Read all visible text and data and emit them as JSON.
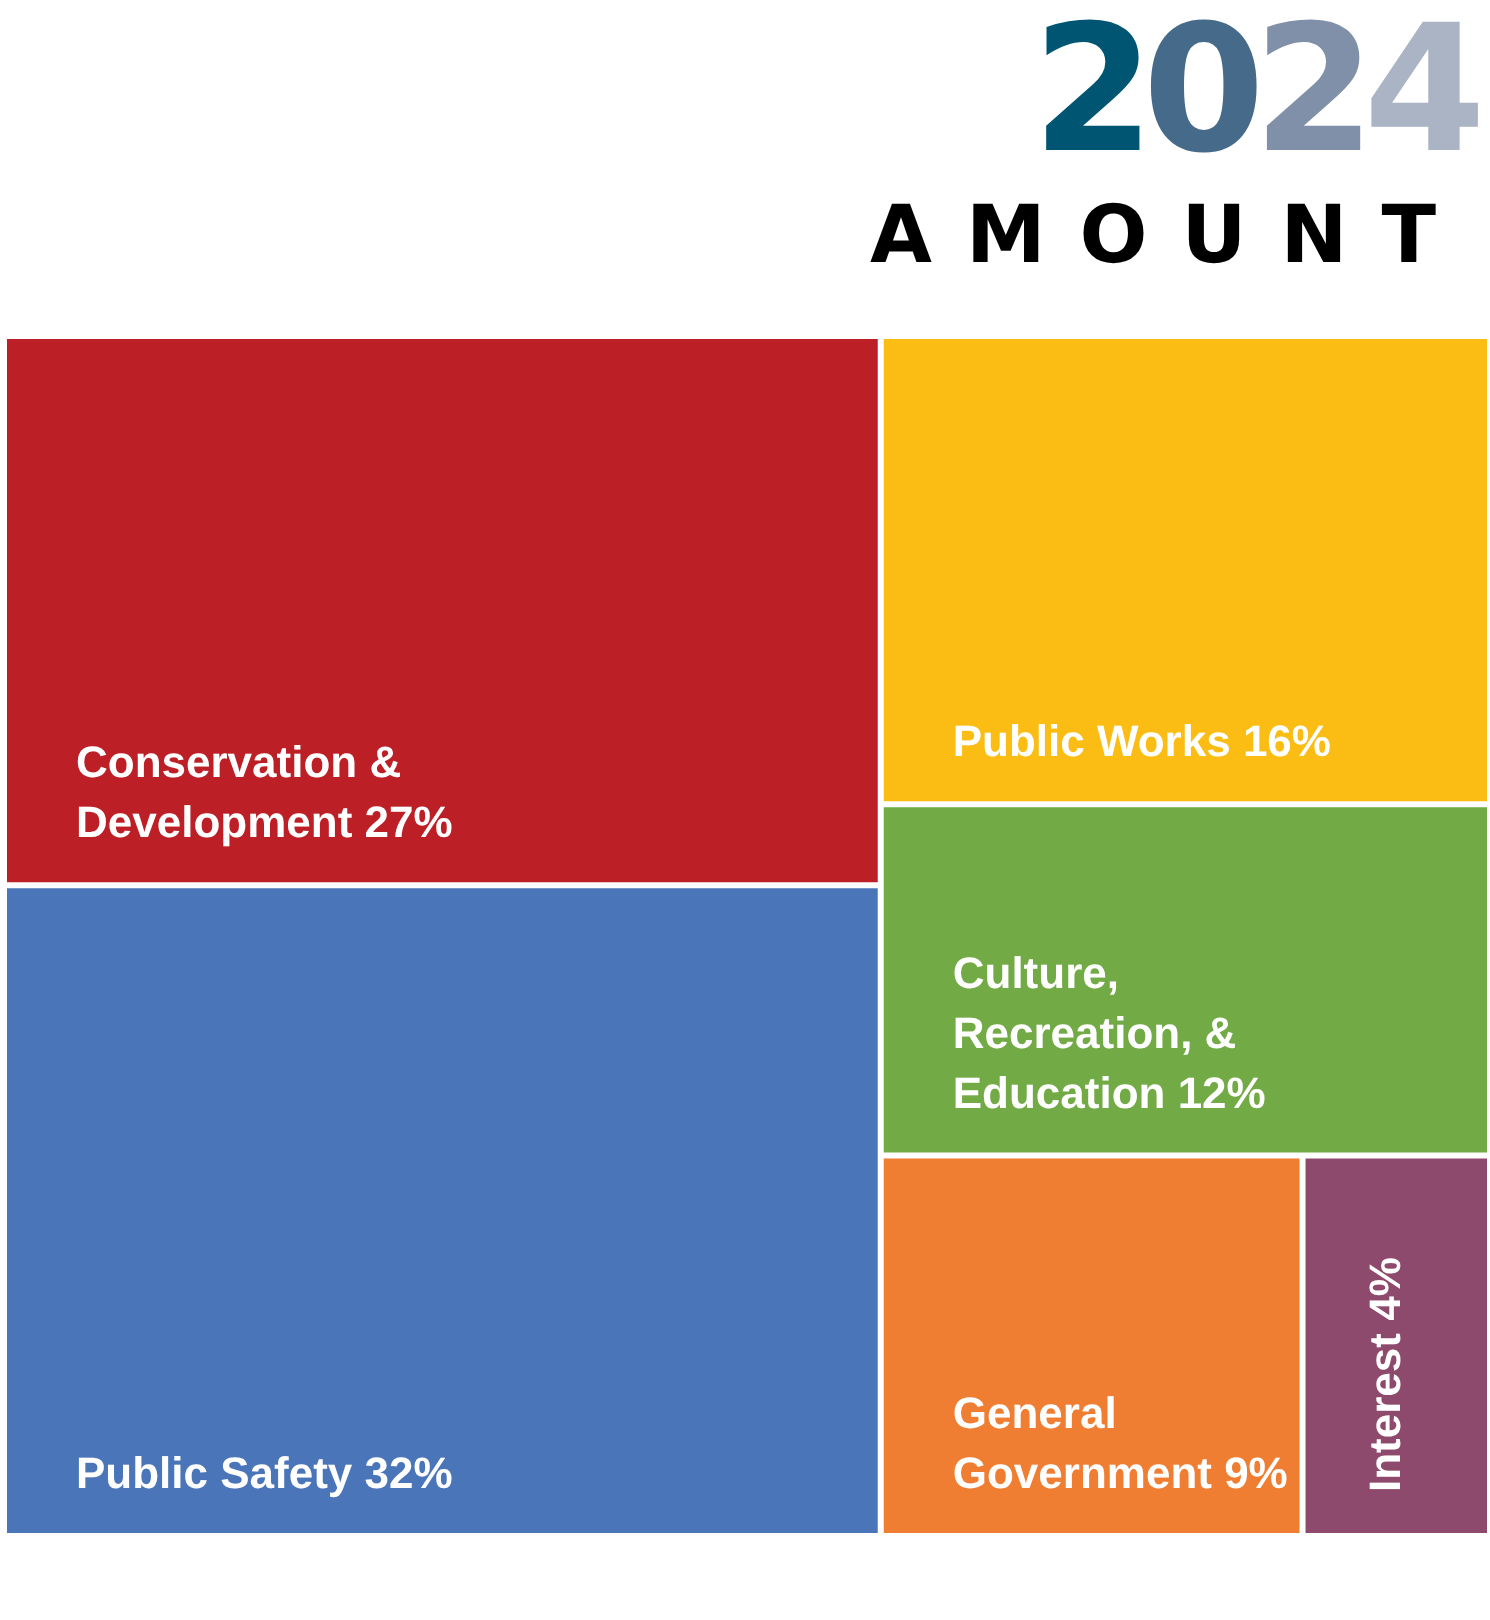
{
  "chart_data": {
    "type": "other",
    "title": "2024",
    "subtitle": "AMOUNT",
    "categories": [
      "Conservation & Development",
      "Public Safety",
      "Public Works",
      "Culture, Recreation, & Education",
      "General Government",
      "Interest"
    ],
    "values": [
      27,
      32,
      16,
      12,
      9,
      4
    ],
    "value_labels": [
      "27%",
      "32%",
      "16%",
      "12%",
      "9%",
      "4%"
    ],
    "colors": [
      "#bc2026",
      "#4a76b9",
      "#fbbd14",
      "#72aa45",
      "#ef7d32",
      "#8e4a6c"
    ]
  }
}
